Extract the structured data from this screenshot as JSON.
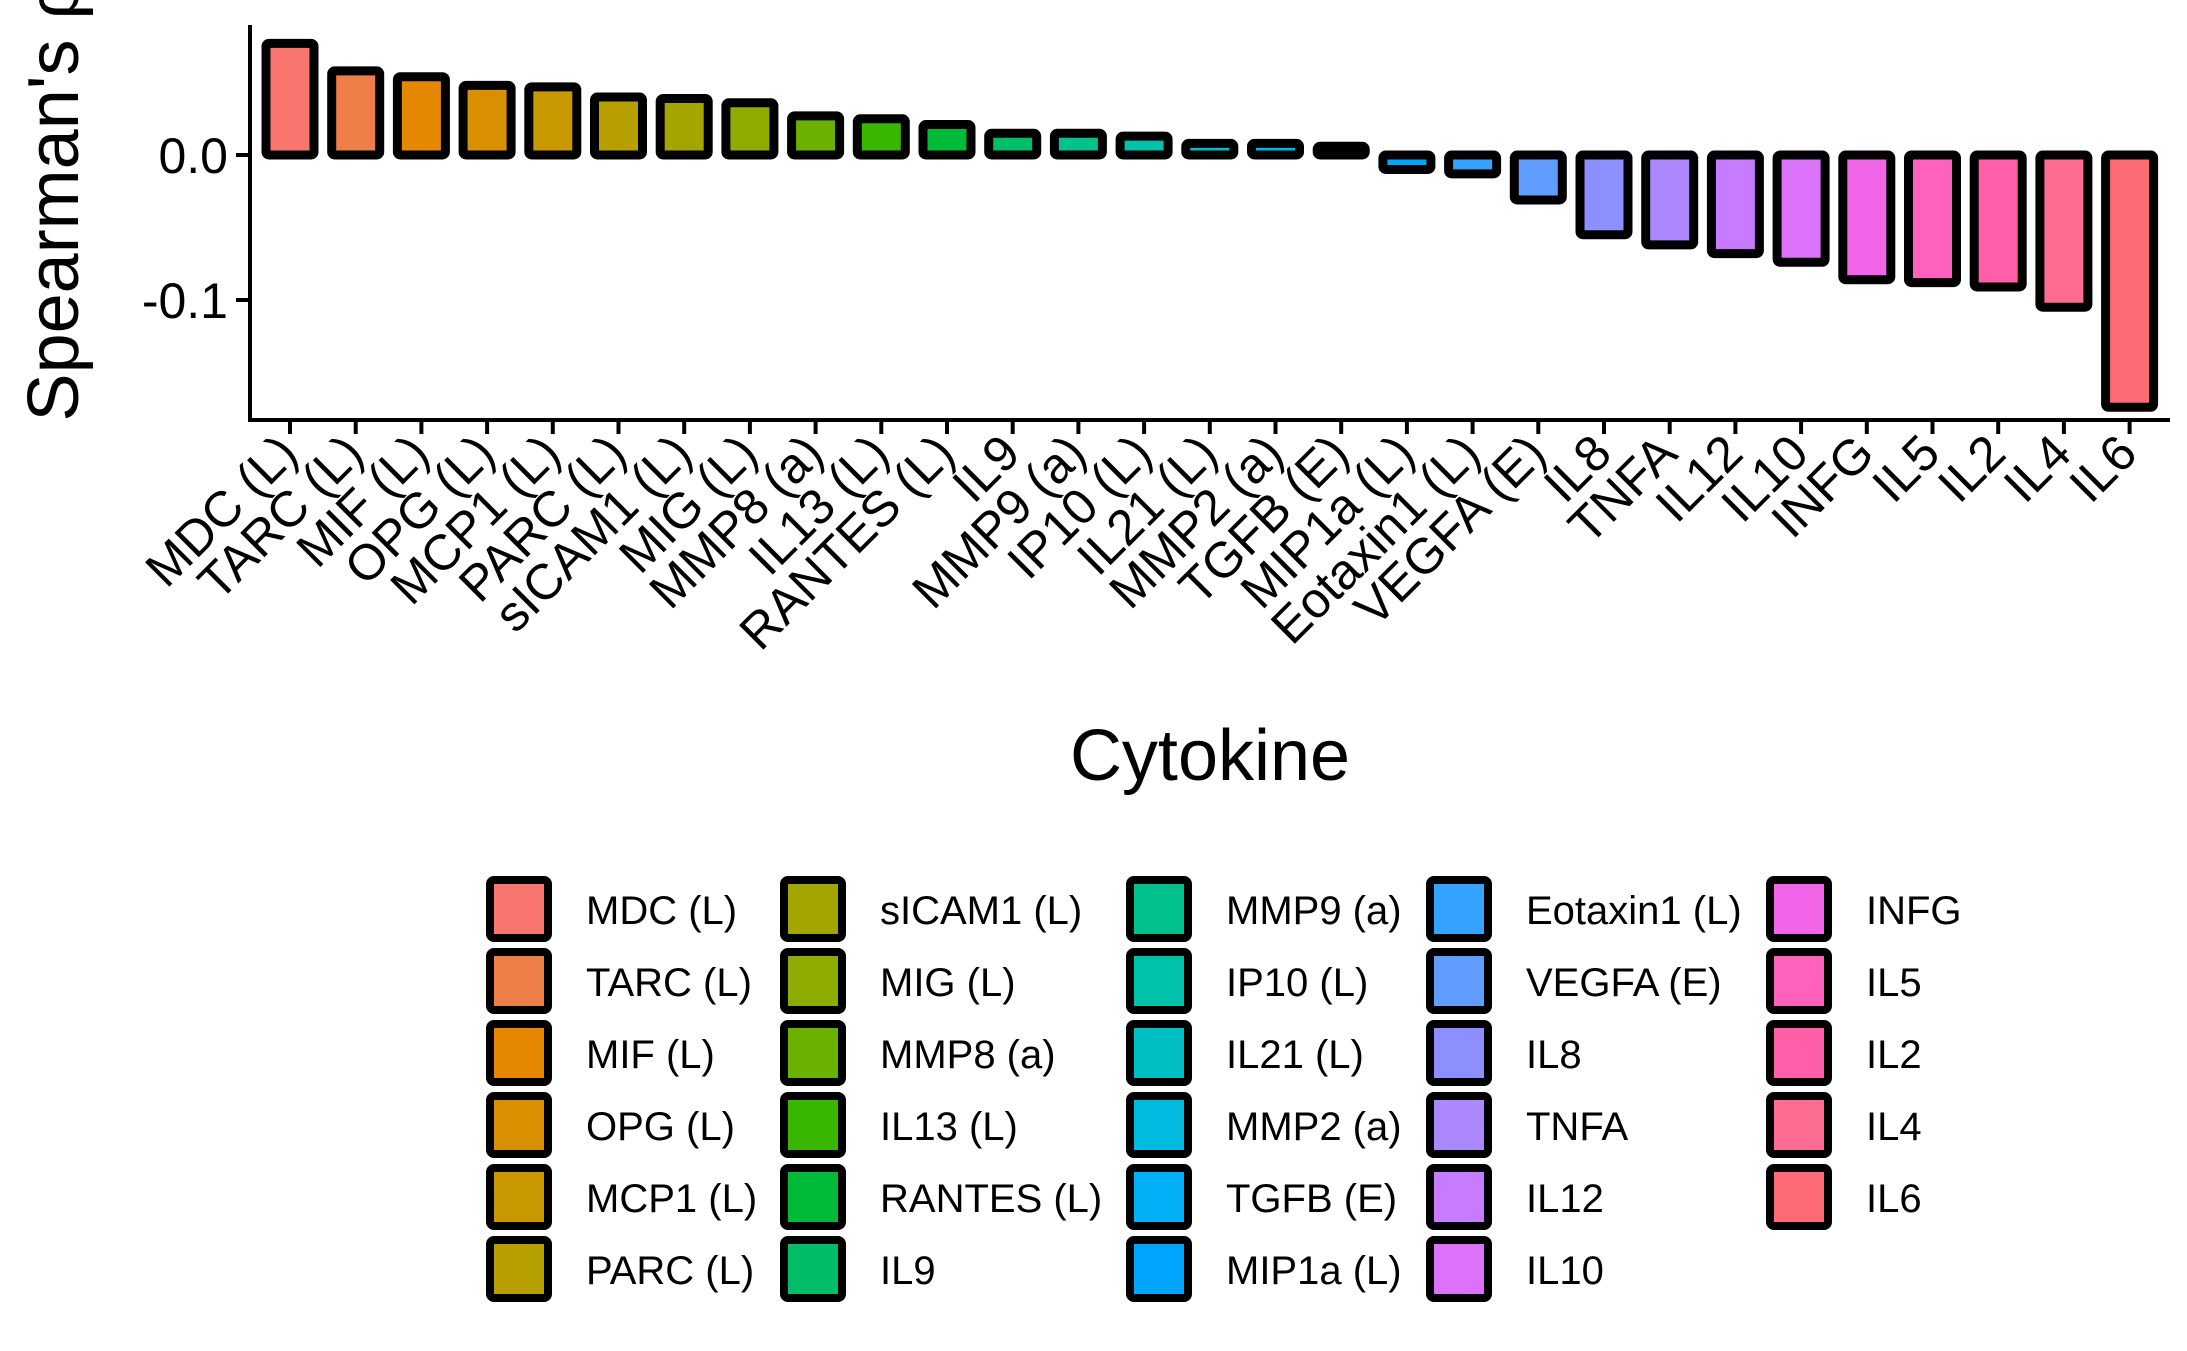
{
  "chart_data": {
    "type": "bar",
    "xlabel": "Cytokine",
    "ylabel": "Spearman's ρ",
    "ylim": [
      -0.18,
      0.085
    ],
    "yticks": [
      "0.0",
      "-0.1"
    ],
    "ytick_values": [
      0.0,
      -0.1
    ],
    "legend_placement": "bottom",
    "categories": [
      "MDC (L)",
      "TARC (L)",
      "MIF (L)",
      "OPG (L)",
      "MCP1 (L)",
      "PARC (L)",
      "sICAM1 (L)",
      "MIG (L)",
      "MMP8 (a)",
      "IL13 (L)",
      "RANTES (L)",
      "IL9",
      "MMP9 (a)",
      "IP10 (L)",
      "IL21 (L)",
      "MMP2 (a)",
      "TGFB (E)",
      "MIP1a (L)",
      "Eotaxin1 (L)",
      "VEGFA (E)",
      "IL8",
      "TNFA",
      "IL12",
      "IL10",
      "INFG",
      "IL5",
      "IL2",
      "IL4",
      "IL6"
    ],
    "values": [
      0.077,
      0.058,
      0.054,
      0.048,
      0.047,
      0.04,
      0.039,
      0.036,
      0.027,
      0.025,
      0.021,
      0.015,
      0.015,
      0.013,
      0.008,
      0.008,
      0.006,
      -0.01,
      -0.013,
      -0.031,
      -0.055,
      -0.062,
      -0.068,
      -0.074,
      -0.086,
      -0.088,
      -0.091,
      -0.105,
      -0.174
    ],
    "colors": [
      "#F8766D",
      "#EF7F49",
      "#E58700",
      "#D89000",
      "#C99800",
      "#B79F00",
      "#A3A500",
      "#8DAB00",
      "#6BB100",
      "#39B600",
      "#00BA38",
      "#00BE67",
      "#00C08B",
      "#00C1A9",
      "#00BFC4",
      "#00BAE0",
      "#00B0F6",
      "#00A5FF",
      "#35A2FF",
      "#619CFF",
      "#8E8FFF",
      "#AC88FF",
      "#C77CFF",
      "#DC71FA",
      "#F166E8",
      "#FF62BC",
      "#FF5FA9",
      "#FF6C91",
      "#FF6B74"
    ]
  }
}
